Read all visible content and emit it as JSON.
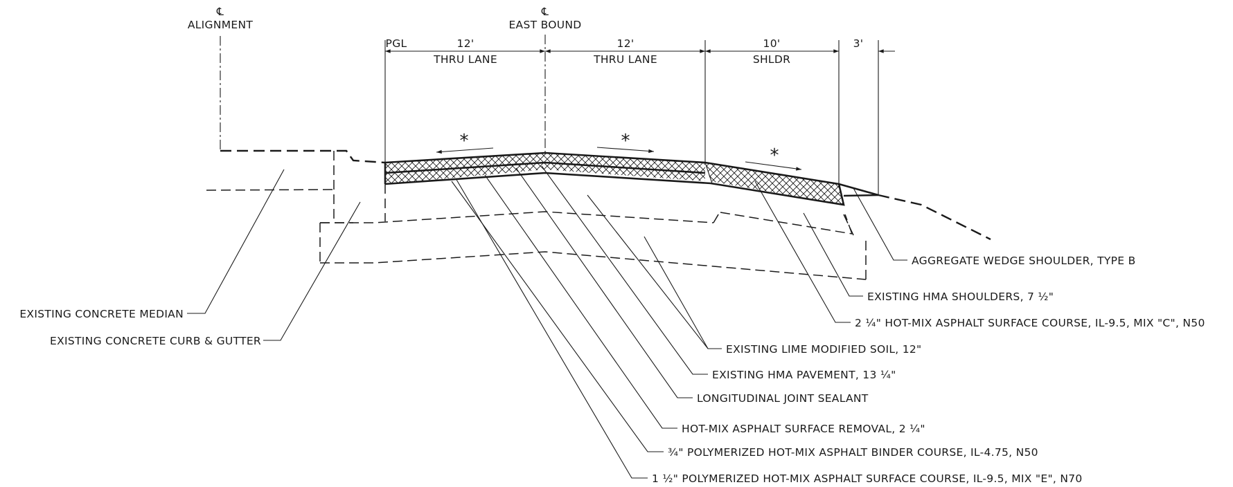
{
  "centerlines": {
    "symbol": "℄",
    "alignment": "ALIGNMENT",
    "eastbound": "EAST BOUND"
  },
  "dimensions": {
    "pgl": "PGL",
    "lane1_width": "12'",
    "lane1_label": "THRU LANE",
    "lane2_width": "12'",
    "lane2_label": "THRU LANE",
    "shoulder_width": "10'",
    "shoulder_label": "SHLDR",
    "wedge_width": "3'"
  },
  "slope_marker": "*",
  "left_callouts": [
    {
      "id": "median",
      "text": "EXISTING CONCRETE MEDIAN"
    },
    {
      "id": "curb",
      "text": "EXISTING CONCRETE CURB & GUTTER"
    }
  ],
  "right_callouts": [
    {
      "id": "wedge",
      "text": "AGGREGATE WEDGE SHOULDER, TYPE B"
    },
    {
      "id": "hma_shoulders",
      "text": "EXISTING HMA SHOULDERS, 7 ½\""
    },
    {
      "id": "surface_c",
      "text": "2 ¼\" HOT-MIX ASPHALT SURFACE COURSE, IL-9.5, MIX \"C\", N50"
    },
    {
      "id": "lime_soil",
      "text": "EXISTING LIME MODIFIED SOIL, 12\""
    },
    {
      "id": "hma_pavement",
      "text": "EXISTING HMA PAVEMENT, 13 ¼\""
    },
    {
      "id": "joint_sealant",
      "text": "LONGITUDINAL JOINT SEALANT"
    },
    {
      "id": "surface_removal",
      "text": "HOT-MIX ASPHALT SURFACE REMOVAL, 2 ¼\""
    },
    {
      "id": "binder",
      "text": "¾\" POLYMERIZED HOT-MIX ASPHALT BINDER COURSE, IL-4.75, N50"
    },
    {
      "id": "surface_e",
      "text": "1 ½\" POLYMERIZED HOT-MIX ASPHALT SURFACE COURSE, IL-9.5, MIX \"E\", N70"
    }
  ]
}
